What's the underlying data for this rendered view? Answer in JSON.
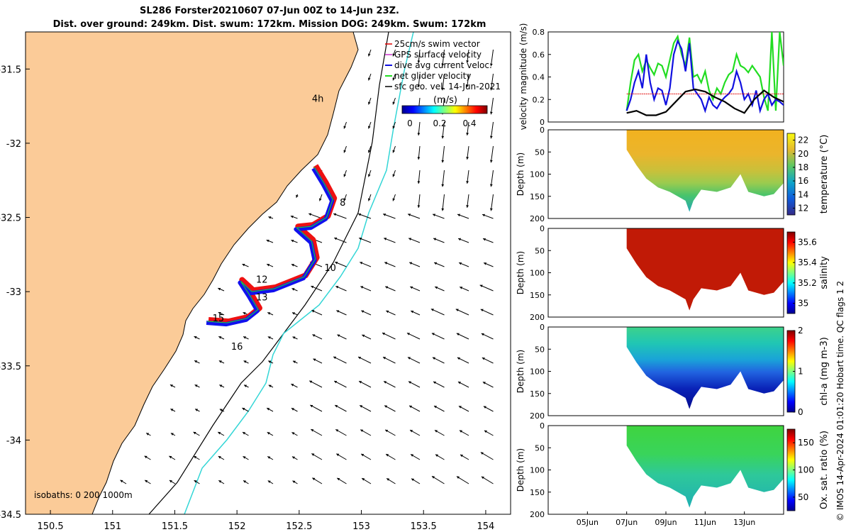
{
  "title_line1": "SL286 Forster20210607 07-Jun 00Z to 14-Jun 23Z.",
  "title_line2": "Dist. over ground: 249km. Dist. swum: 172km. Mission DOG: 249km. Swum: 172km",
  "credit": "© IMOS 14-Apr-2024 01:01:20 Hobart time. QC flags 1  2",
  "colors": {
    "land": "#fbcb98",
    "coast": "#000000",
    "swim_vector": "#e00000",
    "gps_velocity": "#cc33cc",
    "current_velocity": "#1010e0",
    "net_velocity": "#22dd22",
    "geo_velocity": "#000000",
    "isobath_200": "#000000",
    "isobath_1000": "#33d6d6",
    "glider_track_red": "#ee1111",
    "glider_track_blue": "#1111ee"
  },
  "chart_data": [
    {
      "type": "scatter",
      "id": "map",
      "x_ticks": [
        "150.5",
        "151",
        "151.5",
        "152",
        "152.5",
        "153",
        "153.5",
        "154"
      ],
      "y_ticks": [
        "-31.5",
        "-32",
        "-32.5",
        "-33",
        "-33.5",
        "-34",
        "-34.5"
      ],
      "xlim": [
        150.3,
        154.2
      ],
      "ylim": [
        -34.5,
        -31.25
      ],
      "legend": {
        "placement": "top-right",
        "entries": [
          "25cm/s swim vector",
          "GPS surface velocity",
          "dive avg current veloc.",
          "net glider velocity",
          "sfc geo. vel. 14-Jun-2021"
        ]
      },
      "colorbar": {
        "label": "(m/s)",
        "ticks": [
          "0",
          "0.2",
          "0.4"
        ],
        "range": [
          0,
          0.5
        ]
      },
      "isobath_label": "isobaths: 0   200  1000m",
      "day_labels": [
        {
          "text": "4h",
          "lon": 152.65,
          "lat": -31.72
        },
        {
          "text": "8",
          "lon": 152.85,
          "lat": -32.42
        },
        {
          "text": "10",
          "lon": 152.75,
          "lat": -32.86
        },
        {
          "text": "12",
          "lon": 152.2,
          "lat": -32.94
        },
        {
          "text": "13",
          "lon": 152.2,
          "lat": -33.06
        },
        {
          "text": "15",
          "lon": 151.85,
          "lat": -33.2
        },
        {
          "text": "16",
          "lon": 152.0,
          "lat": -33.39
        }
      ],
      "glider_track": [
        [
          152.62,
          -32.16
        ],
        [
          152.7,
          -32.27
        ],
        [
          152.77,
          -32.38
        ],
        [
          152.72,
          -32.5
        ],
        [
          152.6,
          -32.56
        ],
        [
          152.48,
          -32.57
        ],
        [
          152.6,
          -32.66
        ],
        [
          152.63,
          -32.78
        ],
        [
          152.54,
          -32.9
        ],
        [
          152.3,
          -32.98
        ],
        [
          152.12,
          -33.0
        ],
        [
          152.03,
          -32.93
        ],
        [
          152.1,
          -33.02
        ],
        [
          152.17,
          -33.12
        ],
        [
          152.08,
          -33.18
        ],
        [
          151.92,
          -33.21
        ],
        [
          151.76,
          -33.2
        ]
      ]
    },
    {
      "type": "line",
      "id": "velocity",
      "ylabel": "velocity magnitude (m/s)",
      "ylim": [
        0,
        0.8
      ],
      "y_ticks": [
        "0",
        "0.2",
        "0.4",
        "0.6",
        "0.8"
      ],
      "series": [
        {
          "color": "#22dd22",
          "x": [
            7,
            7.2,
            7.4,
            7.6,
            7.8,
            8,
            8.2,
            8.4,
            8.6,
            8.8,
            9,
            9.2,
            9.4,
            9.6,
            9.8,
            10,
            10.2,
            10.4,
            10.6,
            10.8,
            11,
            11.2,
            11.4,
            11.6,
            11.8,
            12,
            12.2,
            12.4,
            12.6,
            12.8,
            13,
            13.2,
            13.4,
            13.6,
            13.8,
            14,
            14.2,
            14.4,
            14.6,
            14.8,
            15
          ],
          "y": [
            0.1,
            0.35,
            0.55,
            0.6,
            0.45,
            0.55,
            0.48,
            0.42,
            0.52,
            0.5,
            0.4,
            0.55,
            0.7,
            0.76,
            0.6,
            0.5,
            0.75,
            0.4,
            0.42,
            0.35,
            0.45,
            0.28,
            0.2,
            0.3,
            0.25,
            0.35,
            0.42,
            0.45,
            0.6,
            0.5,
            0.48,
            0.44,
            0.5,
            0.45,
            0.4,
            0.22,
            0.1,
            0.8,
            0.1,
            0.8,
            0.5
          ]
        },
        {
          "color": "#1010e0",
          "x": [
            7,
            7.2,
            7.4,
            7.6,
            7.8,
            8,
            8.2,
            8.4,
            8.6,
            8.8,
            9,
            9.2,
            9.4,
            9.6,
            9.8,
            10,
            10.2,
            10.4,
            10.6,
            10.8,
            11,
            11.2,
            11.4,
            11.6,
            11.8,
            12,
            12.2,
            12.4,
            12.6,
            12.8,
            13,
            13.2,
            13.4,
            13.6,
            13.8,
            14,
            14.2,
            14.4,
            14.6,
            14.8,
            15
          ],
          "y": [
            0.1,
            0.2,
            0.35,
            0.45,
            0.3,
            0.6,
            0.35,
            0.2,
            0.3,
            0.28,
            0.15,
            0.3,
            0.6,
            0.72,
            0.65,
            0.45,
            0.7,
            0.3,
            0.25,
            0.2,
            0.1,
            0.22,
            0.15,
            0.12,
            0.18,
            0.22,
            0.25,
            0.3,
            0.45,
            0.35,
            0.2,
            0.25,
            0.15,
            0.28,
            0.1,
            0.2,
            0.25,
            0.15,
            0.2,
            0.18,
            0.15
          ]
        },
        {
          "color": "#e00000",
          "x": [
            7,
            15
          ],
          "y": [
            0.25,
            0.25
          ]
        },
        {
          "color": "#000000",
          "x": [
            7,
            7.5,
            8,
            8.5,
            9,
            9.5,
            10,
            10.5,
            11,
            11.5,
            12,
            12.5,
            13,
            13.5,
            14,
            14.5,
            15
          ],
          "y": [
            0.08,
            0.1,
            0.06,
            0.06,
            0.09,
            0.18,
            0.27,
            0.29,
            0.27,
            0.22,
            0.18,
            0.12,
            0.08,
            0.2,
            0.28,
            0.22,
            0.18
          ]
        }
      ]
    },
    {
      "type": "heatmap",
      "id": "temperature",
      "ylabel": "Depth (m)",
      "colorbar_label": "temperature (°C)",
      "colorbar_ticks": [
        "12",
        "14",
        "16",
        "18",
        "20",
        "22"
      ],
      "range": [
        11,
        23
      ],
      "y_ticks": [
        "0",
        "50",
        "100",
        "150",
        "200"
      ]
    },
    {
      "type": "heatmap",
      "id": "salinity",
      "ylabel": "Depth (m)",
      "colorbar_label": "salinity",
      "colorbar_ticks": [
        "35",
        "35.2",
        "35.4",
        "35.6"
      ],
      "range": [
        34.9,
        35.7
      ],
      "y_ticks": [
        "0",
        "50",
        "100",
        "150",
        "200"
      ]
    },
    {
      "type": "heatmap",
      "id": "chla",
      "ylabel": "Depth (m)",
      "colorbar_label": "chl-a (mg m-3)",
      "colorbar_ticks": [
        "0",
        "1",
        "2"
      ],
      "range": [
        0,
        2
      ],
      "y_ticks": [
        "0",
        "50",
        "100",
        "150",
        "200"
      ]
    },
    {
      "type": "heatmap",
      "id": "oxygen",
      "ylabel": "Depth (m)",
      "colorbar_label": "Ox. sat. ratio (%)",
      "colorbar_ticks": [
        "50",
        "100",
        "150"
      ],
      "range": [
        25,
        175
      ],
      "y_ticks": [
        "0",
        "50",
        "100",
        "150",
        "200"
      ],
      "x_ticks": [
        "05Jun",
        "07Jun",
        "09Jun",
        "11Jun",
        "13Jun"
      ]
    }
  ]
}
